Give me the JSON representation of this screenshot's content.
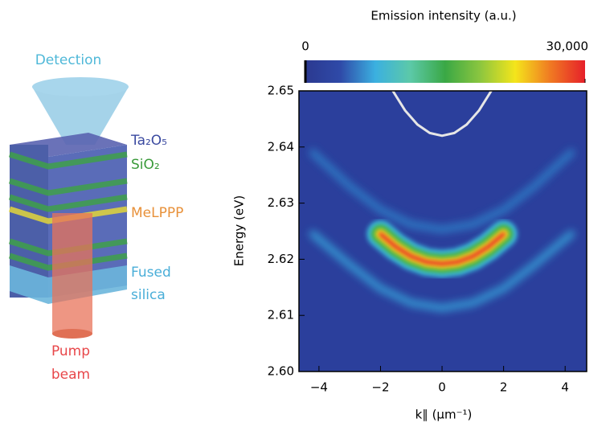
{
  "diagram": {
    "detection": "Detection",
    "layer_top": "Ta₂O₅",
    "layer_spacer": "SiO₂",
    "layer_active": "MeLPPP",
    "substrate": [
      "Fused",
      "silica"
    ],
    "pump": [
      "Pump",
      "beam"
    ]
  },
  "chart_data": {
    "type": "heatmap",
    "colorbar": {
      "label": "Emission intensity (a.u.)",
      "lim": [
        0,
        30000
      ],
      "ticks": [
        0,
        {
          "value": 30000,
          "label": "30,000"
        }
      ],
      "colors": [
        "#2b3990",
        "#2f4aa8",
        "#3bb0e0",
        "#5cc9a8",
        "#3aa845",
        "#8cc63f",
        "#f4e51b",
        "#f07a22",
        "#e6202a"
      ]
    },
    "xlabel": "k∥ (μm⁻¹)",
    "ylabel": "Energy (eV)",
    "xlim": [
      -4.65,
      4.7
    ],
    "ylim": [
      2.6,
      2.65
    ],
    "xticks": [
      {
        "value": -4,
        "label": "−4"
      },
      {
        "value": -2,
        "label": "−2"
      },
      0,
      2,
      4
    ],
    "yticks": [
      {
        "value": 2.6,
        "label": "2.60"
      },
      2.61,
      2.62,
      2.63,
      2.64,
      2.65
    ],
    "series": [
      {
        "color": "#2f7fc8",
        "x": [
          -4.2,
          -3,
          -2,
          -1,
          0,
          1,
          2,
          3,
          4.2
        ],
        "values": [
          2.639,
          2.633,
          2.6288,
          2.6262,
          2.6253,
          2.6262,
          2.6288,
          2.633,
          2.639
        ]
      },
      {
        "color": "#35a0d8",
        "x": [
          -4.2,
          -3,
          -2,
          -1,
          0,
          1,
          2,
          3,
          4.2
        ],
        "values": [
          2.6245,
          2.619,
          2.6148,
          2.6122,
          2.6113,
          2.6122,
          2.6148,
          2.619,
          2.6245
        ]
      },
      {
        "colors": [
          "#3bb9e0",
          "#3fae49",
          "#f2e21a",
          "#e8202a"
        ],
        "x": [
          -2,
          -1.5,
          -1,
          -0.5,
          0,
          0.5,
          1,
          1.5,
          2
        ],
        "values": [
          2.6245,
          2.6222,
          2.6205,
          2.6195,
          2.6192,
          2.6195,
          2.6205,
          2.6222,
          2.6245
        ]
      },
      {
        "color": "#e6e6e6",
        "x": [
          -1.6,
          -1.2,
          -0.8,
          -0.4,
          0,
          0.4,
          0.8,
          1.2,
          1.6
        ],
        "values": [
          2.65,
          2.6465,
          2.644,
          2.6425,
          2.642,
          2.6425,
          2.644,
          2.6465,
          2.65
        ]
      }
    ]
  }
}
